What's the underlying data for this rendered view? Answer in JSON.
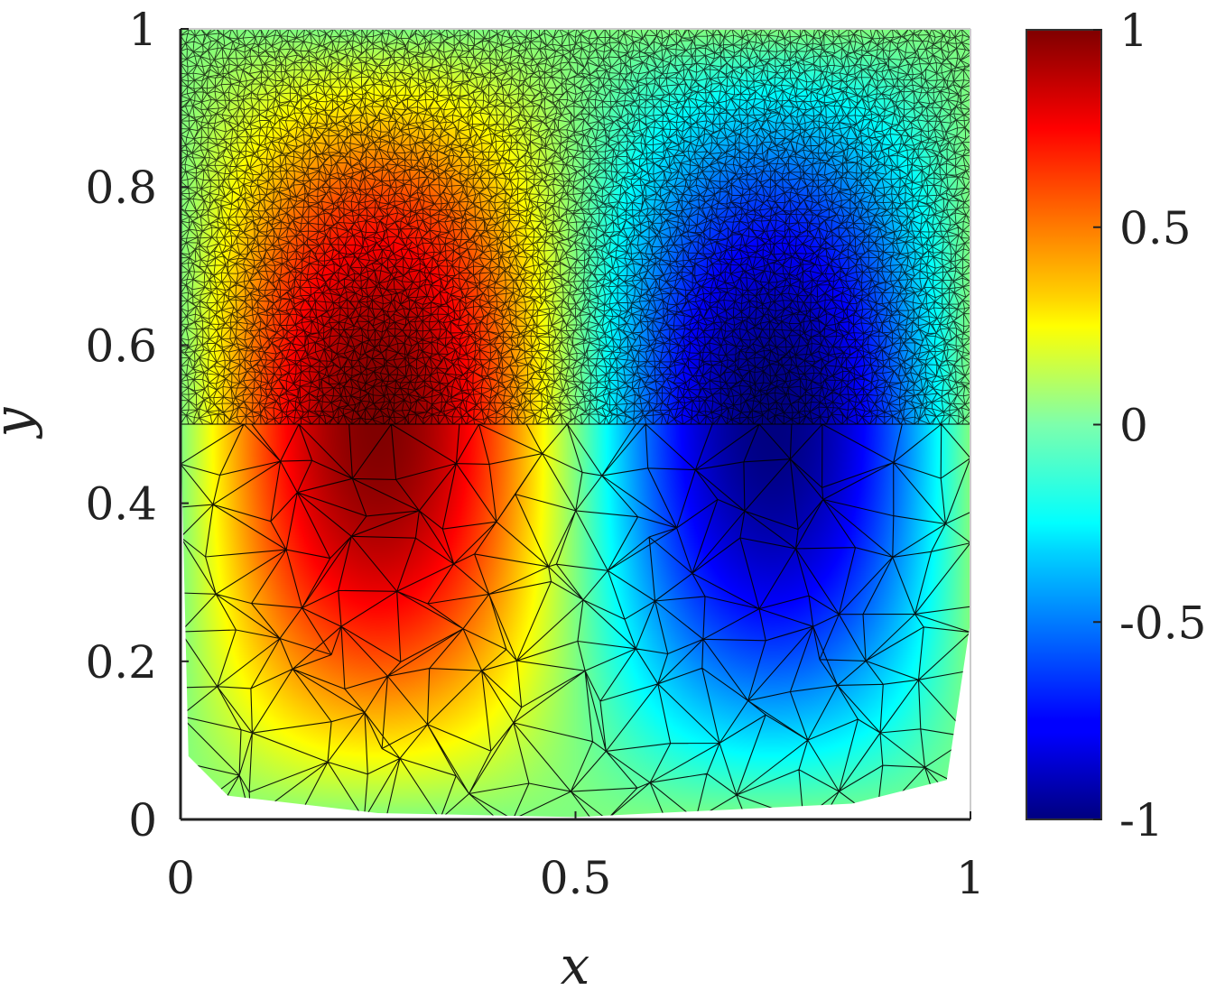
{
  "chart_data": {
    "type": "heatmap",
    "xlabel": "x",
    "ylabel": "y",
    "xlim": [
      0,
      1
    ],
    "ylim": [
      0,
      1
    ],
    "xticks": [
      "0",
      "0.5",
      "1"
    ],
    "yticks": [
      "0",
      "0.2",
      "0.4",
      "0.6",
      "0.8",
      "1"
    ],
    "colorbar": {
      "ticks": [
        "-1",
        "-0.5",
        "0",
        "0.5",
        "1"
      ],
      "range": [
        -1,
        1
      ],
      "colormap": "jet",
      "placement": "right"
    },
    "field": {
      "description": "u(x, y) = sin(2πx) · sin(πy) plotted on a triangular finite-element mesh",
      "max": {
        "x": 0.25,
        "y": 0.5,
        "value": 1
      },
      "min": {
        "x": 0.75,
        "y": 0.5,
        "value": -1
      }
    },
    "mesh": {
      "refinement_boundary_y": 0.5,
      "top_region": "fine",
      "bottom_region": "coarse",
      "edge_color": "#000000"
    }
  }
}
